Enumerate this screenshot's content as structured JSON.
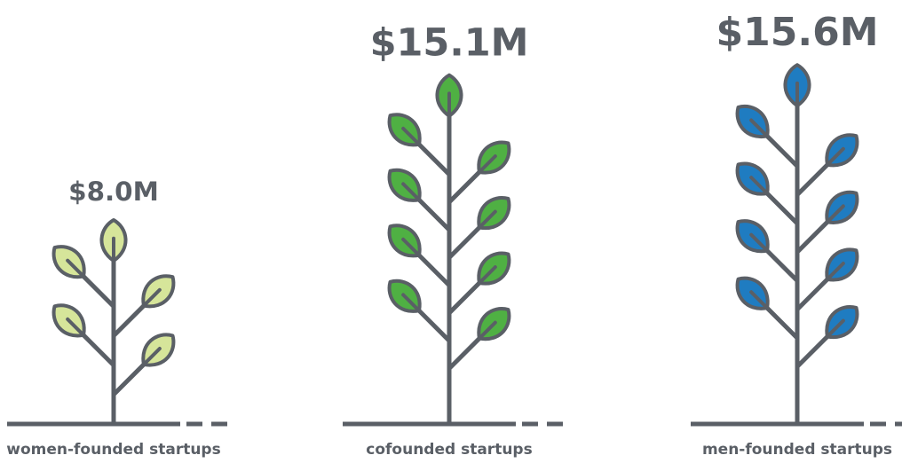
{
  "chart_data": {
    "type": "plant",
    "categories": [
      "women-founded startups",
      "cofounded startups",
      "men-founded startups"
    ],
    "values": [
      8.0,
      15.1,
      15.6
    ],
    "value_labels": [
      "$8.0M",
      "$15.1M",
      "$15.6M"
    ],
    "colors": [
      "#d6e59a",
      "#4fb043",
      "#1f7cc1"
    ]
  }
}
